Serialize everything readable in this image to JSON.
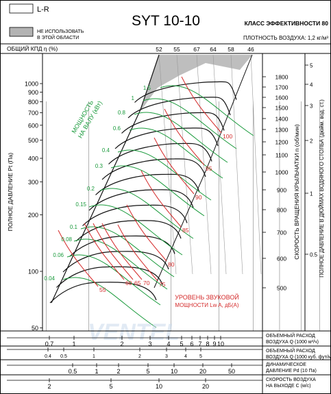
{
  "header": {
    "title": "SYT 10-10",
    "efficiency_class": "КЛАСС ЭФФЕКТИВНОСТИ 80",
    "air_density": "ПЛОТНОСТЬ ВОЗДУХА: 1,2 кг/м³",
    "legend": [
      {
        "label": "L-R",
        "color": "#ffffff"
      },
      {
        "label": "НЕ ИСПОЛЬЗОВАТЬ",
        "label2": "В ЭТОЙ ОБЛАСТИ",
        "color": "#b3b3b3"
      }
    ],
    "efficiency_label": "ОБЩИЙ КПД η (%)",
    "efficiency_values": [
      "52",
      "55",
      "67",
      "64",
      "58",
      "46"
    ]
  },
  "axes": {
    "left_label": "ПОЛНОЕ ДАВЛЕНИЕ Pt (Па)",
    "left_ticks": [
      "1000",
      "900",
      "800",
      "700",
      "600",
      "500",
      "400",
      "300",
      "200",
      "100",
      "50"
    ],
    "right_speed_label": "СКОРОСТЬ ВРАЩЕНИЯ КРЫЛЬЧАТКИ  n (об/мин)",
    "right_speed_ticks": [
      "1800",
      "1700",
      "1600",
      "1500",
      "1400",
      "1300",
      "1200",
      "1100",
      "1000",
      "900",
      "800",
      "700",
      "600",
      "500"
    ],
    "right_inch_label": "ПОЛНОЕ ДАВЛЕНИЕ В ДЮЙМАХ ВОДЯНОГО СТОЛБА (дюйм. вод. ст.)",
    "right_inch_ticks": [
      "5",
      "4",
      "3",
      "2",
      "1",
      "0.5"
    ],
    "power_label_1": "МОЩНОСТЬ",
    "power_label_2": "НА ВАЛУ (кВт)",
    "power_values": [
      "1.5",
      "1",
      "0.8",
      "0.6",
      "0.4",
      "0.3",
      "0.2",
      "0.15",
      "0.1",
      "0.08",
      "0.06",
      "0.04"
    ],
    "sound_label_1": "УРОВЕНЬ ЗВУКОВОЙ",
    "sound_label_2": "МОЩНОСТИ  Lw A, дБ(А)",
    "sound_values": [
      "100",
      "95",
      "90",
      "85",
      "80",
      "75",
      "70",
      "65",
      "60",
      "55"
    ]
  },
  "bottom_scales": [
    {
      "label1": "ОБЪЕМНЫЙ РАСХОД",
      "label2": "ВОЗДУХА Q (1000 м³/ч)",
      "ticks": [
        "0.7",
        "1",
        "2",
        "3",
        "4",
        "5",
        "6",
        "7",
        "8",
        "9",
        "10"
      ]
    },
    {
      "label1": "ОБЪЕМНЫЙ РАСХОД",
      "label2": "ВОЗДУХА Q (1000 куб. фут/мин)",
      "ticks": [
        "0.4",
        "0.5",
        "1",
        "2",
        "3",
        "4",
        "5"
      ]
    },
    {
      "label1": "ДИНАМИЧЕСКОЕ",
      "label2": "ДАВЛЕНИЕ Pd (10 Па)",
      "ticks": [
        "0.5",
        "1",
        "2",
        "5",
        "10",
        "20",
        "50"
      ]
    },
    {
      "label1": "СКОРОСТЬ ВОЗДУХА",
      "label2": "НА ВЫХОДЕ С (м/с)",
      "ticks": [
        "2",
        "5",
        "10",
        "20"
      ]
    }
  ],
  "watermark": "VENTEL",
  "chart_data": {
    "type": "line",
    "title": "SYT 10-10",
    "xlabel": "ОБЪЕМНЫЙ РАСХОД ВОЗДУХА Q (1000 м³/ч)",
    "ylabel": "ПОЛНОЕ ДАВЛЕНИЕ Pt (Па)",
    "x_scale": "log",
    "y_scale": "log",
    "xlim": [
      0.65,
      12
    ],
    "ylim": [
      50,
      1300
    ],
    "speed_curves_rpm": [
      500,
      600,
      700,
      800,
      900,
      1000,
      1100,
      1200,
      1300,
      1400,
      1500,
      1600,
      1700,
      1800
    ],
    "power_kw": [
      0.04,
      0.06,
      0.08,
      0.1,
      0.15,
      0.2,
      0.3,
      0.4,
      0.6,
      0.8,
      1,
      1.5
    ],
    "sound_dba": [
      55,
      60,
      65,
      70,
      75,
      80,
      85,
      90,
      95,
      100
    ],
    "efficiency_pct": [
      52,
      55,
      67,
      64,
      58,
      46
    ],
    "colors": {
      "speed": "#111111",
      "power": "#1a9a3c",
      "sound": "#d42a2a",
      "efficiency": "#9a9a9a",
      "forbidden": "#b3b3b3"
    }
  }
}
